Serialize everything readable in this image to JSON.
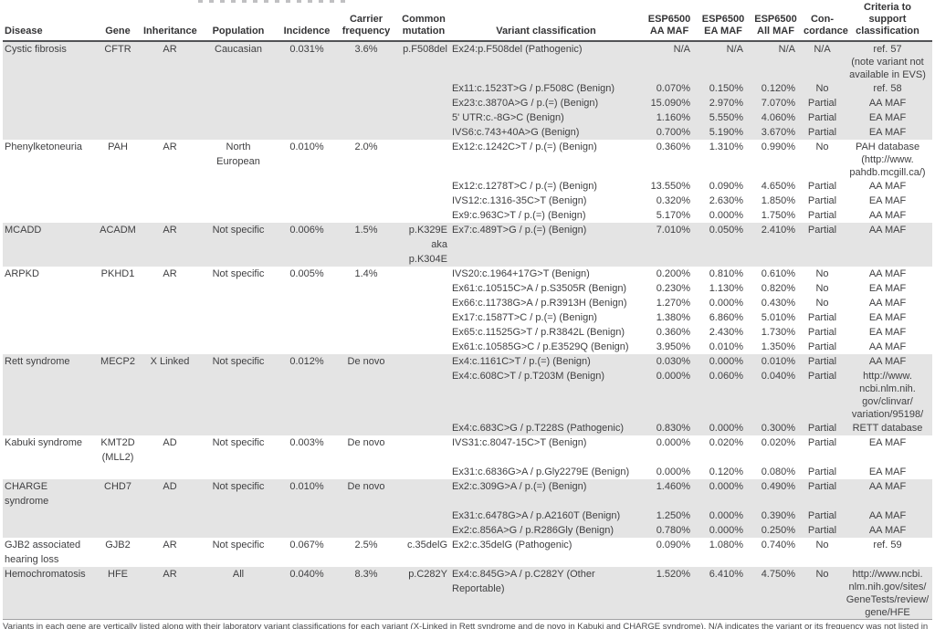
{
  "table": {
    "columns": [
      {
        "key": "disease",
        "label": "Disease"
      },
      {
        "key": "gene",
        "label": "Gene"
      },
      {
        "key": "inheritance",
        "label": "Inheritance"
      },
      {
        "key": "population",
        "label": "Population"
      },
      {
        "key": "incidence",
        "label": "Incidence"
      },
      {
        "key": "carrier_frequency",
        "label": "Carrier\nfrequency"
      },
      {
        "key": "common_mutation",
        "label": "Common\nmutation"
      },
      {
        "key": "classification",
        "label": "Variant classification"
      },
      {
        "key": "aa_maf",
        "label": "ESP6500\nAA MAF"
      },
      {
        "key": "ea_maf",
        "label": "ESP6500\nEA MAF"
      },
      {
        "key": "all_maf",
        "label": "ESP6500\nAll MAF"
      },
      {
        "key": "concordance",
        "label": "Con-\ncordance"
      },
      {
        "key": "criteria",
        "label": "Criteria to\nsupport\nclassification"
      }
    ],
    "groups": [
      {
        "shaded": true,
        "disease": "Cystic fibrosis",
        "gene": "CFTR",
        "inheritance": "AR",
        "population": "Caucasian",
        "incidence": "0.031%",
        "carrier_frequency": "3.6%",
        "common_mutation": "p.F508del",
        "variants": [
          {
            "classification": "Ex24:p.F508del (Pathogenic)",
            "aa_maf": "N/A",
            "ea_maf": "N/A",
            "all_maf": "N/A",
            "concordance": "N/A",
            "criteria": "ref. 57\n(note variant not\navailable in EVS)"
          },
          {
            "classification": "Ex11:c.1523T>G / p.F508C (Benign)",
            "aa_maf": "0.070%",
            "ea_maf": "0.150%",
            "all_maf": "0.120%",
            "concordance": "No",
            "criteria": "ref. 58"
          },
          {
            "classification": "Ex23:c.3870A>G / p.(=) (Benign)",
            "aa_maf": "15.090%",
            "ea_maf": "2.970%",
            "all_maf": "7.070%",
            "concordance": "Partial",
            "criteria": "AA MAF"
          },
          {
            "classification": "5' UTR:c.-8G>C (Benign)",
            "aa_maf": "1.160%",
            "ea_maf": "5.550%",
            "all_maf": "4.060%",
            "concordance": "Partial",
            "criteria": "EA MAF"
          },
          {
            "classification": "IVS6:c.743+40A>G (Benign)",
            "aa_maf": "0.700%",
            "ea_maf": "5.190%",
            "all_maf": "3.670%",
            "concordance": "Partial",
            "criteria": "EA MAF"
          }
        ]
      },
      {
        "shaded": false,
        "disease": "Phenylketoneuria",
        "gene": "PAH",
        "inheritance": "AR",
        "population": "North\nEuropean",
        "incidence": "0.010%",
        "carrier_frequency": "2.0%",
        "common_mutation": "",
        "variants": [
          {
            "classification": "Ex12:c.1242C>T / p.(=) (Benign)",
            "aa_maf": "0.360%",
            "ea_maf": "1.310%",
            "all_maf": "0.990%",
            "concordance": "No",
            "criteria": "PAH database\n(http://www.\npahdb.mcgill.ca/)"
          },
          {
            "classification": "Ex12:c.1278T>C / p.(=) (Benign)",
            "aa_maf": "13.550%",
            "ea_maf": "0.090%",
            "all_maf": "4.650%",
            "concordance": "Partial",
            "criteria": "AA MAF"
          },
          {
            "classification": "IVS12:c.1316-35C>T (Benign)",
            "aa_maf": "0.320%",
            "ea_maf": "2.630%",
            "all_maf": "1.850%",
            "concordance": "Partial",
            "criteria": "EA MAF"
          },
          {
            "classification": "Ex9:c.963C>T / p.(=) (Benign)",
            "aa_maf": "5.170%",
            "ea_maf": "0.000%",
            "all_maf": "1.750%",
            "concordance": "Partial",
            "criteria": "AA MAF"
          }
        ]
      },
      {
        "shaded": true,
        "disease": "MCADD",
        "gene": "ACADM",
        "inheritance": "AR",
        "population": "Not specific",
        "incidence": "0.006%",
        "carrier_frequency": "1.5%",
        "common_mutation": "p.K329E\naka p.K304E",
        "variants": [
          {
            "classification": "Ex7:c.489T>G / p.(=) (Benign)",
            "aa_maf": "7.010%",
            "ea_maf": "0.050%",
            "all_maf": "2.410%",
            "concordance": "Partial",
            "criteria": "AA MAF"
          }
        ]
      },
      {
        "shaded": false,
        "disease": "ARPKD",
        "gene": "PKHD1",
        "inheritance": "AR",
        "population": "Not specific",
        "incidence": "0.005%",
        "carrier_frequency": "1.4%",
        "common_mutation": "",
        "variants": [
          {
            "classification": "IVS20:c.1964+17G>T (Benign)",
            "aa_maf": "0.200%",
            "ea_maf": "0.810%",
            "all_maf": "0.610%",
            "concordance": "No",
            "criteria": "AA MAF"
          },
          {
            "classification": "Ex61:c.10515C>A / p.S3505R (Benign)",
            "aa_maf": "0.230%",
            "ea_maf": "1.130%",
            "all_maf": "0.820%",
            "concordance": "No",
            "criteria": "EA MAF"
          },
          {
            "classification": "Ex66:c.11738G>A / p.R3913H (Benign)",
            "aa_maf": "1.270%",
            "ea_maf": "0.000%",
            "all_maf": "0.430%",
            "concordance": "No",
            "criteria": "AA MAF"
          },
          {
            "classification": "Ex17:c.1587T>C / p.(=) (Benign)",
            "aa_maf": "1.380%",
            "ea_maf": "6.860%",
            "all_maf": "5.010%",
            "concordance": "Partial",
            "criteria": "EA MAF"
          },
          {
            "classification": "Ex65:c.11525G>T / p.R3842L (Benign)",
            "aa_maf": "0.360%",
            "ea_maf": "2.430%",
            "all_maf": "1.730%",
            "concordance": "Partial",
            "criteria": "EA MAF"
          },
          {
            "classification": "Ex61:c.10585G>C / p.E3529Q (Benign)",
            "aa_maf": "3.950%",
            "ea_maf": "0.010%",
            "all_maf": "1.350%",
            "concordance": "Partial",
            "criteria": "AA MAF"
          }
        ]
      },
      {
        "shaded": true,
        "disease": "Rett syndrome",
        "gene": "MECP2",
        "inheritance": "X Linked",
        "population": "Not specific",
        "incidence": "0.012%",
        "carrier_frequency": "De novo",
        "common_mutation": "",
        "variants": [
          {
            "classification": "Ex4:c.1161C>T / p.(=) (Benign)",
            "aa_maf": "0.030%",
            "ea_maf": "0.000%",
            "all_maf": "0.010%",
            "concordance": "Partial",
            "criteria": "AA MAF"
          },
          {
            "classification": "Ex4:c.608C>T / p.T203M (Benign)",
            "aa_maf": "0.000%",
            "ea_maf": "0.060%",
            "all_maf": "0.040%",
            "concordance": "Partial",
            "criteria": "http://www.\nncbi.nlm.nih.\ngov/clinvar/\nvariation/95198/"
          },
          {
            "classification": "Ex4:c.683C>G / p.T228S (Pathogenic)",
            "aa_maf": "0.830%",
            "ea_maf": "0.000%",
            "all_maf": "0.300%",
            "concordance": "Partial",
            "criteria": "RETT database"
          }
        ]
      },
      {
        "shaded": false,
        "disease": "Kabuki syndrome",
        "gene": "KMT2D\n(MLL2)",
        "inheritance": "AD",
        "population": "Not specific",
        "incidence": "0.003%",
        "carrier_frequency": "De novo",
        "common_mutation": "",
        "variants": [
          {
            "classification": "IVS31:c.8047-15C>T (Benign)",
            "aa_maf": "0.000%",
            "ea_maf": "0.020%",
            "all_maf": "0.020%",
            "concordance": "Partial",
            "criteria": "EA MAF"
          },
          {
            "classification": "Ex31:c.6836G>A / p.Gly2279E (Benign)",
            "aa_maf": "0.000%",
            "ea_maf": "0.120%",
            "all_maf": "0.080%",
            "concordance": "Partial",
            "criteria": "EA MAF"
          }
        ]
      },
      {
        "shaded": true,
        "disease": "CHARGE syndrome",
        "gene": "CHD7",
        "inheritance": "AD",
        "population": "Not specific",
        "incidence": "0.010%",
        "carrier_frequency": "De novo",
        "common_mutation": "",
        "variants": [
          {
            "classification": "Ex2:c.309G>A / p.(=) (Benign)",
            "aa_maf": "1.460%",
            "ea_maf": "0.000%",
            "all_maf": "0.490%",
            "concordance": "Partial",
            "criteria": "AA MAF"
          },
          {
            "classification": "Ex31:c.6478G>A / p.A2160T (Benign)",
            "aa_maf": "1.250%",
            "ea_maf": "0.000%",
            "all_maf": "0.390%",
            "concordance": "Partial",
            "criteria": "AA MAF"
          },
          {
            "classification": "Ex2:c.856A>G / p.R286Gly (Benign)",
            "aa_maf": "0.780%",
            "ea_maf": "0.000%",
            "all_maf": "0.250%",
            "concordance": "Partial",
            "criteria": "AA MAF"
          }
        ]
      },
      {
        "shaded": false,
        "disease": "GJB2 associated\nhearing loss",
        "gene": "GJB2",
        "inheritance": "AR",
        "population": "Not specific",
        "incidence": "0.067%",
        "carrier_frequency": "2.5%",
        "common_mutation": "c.35delG",
        "variants": [
          {
            "classification": "Ex2:c.35delG (Pathogenic)",
            "aa_maf": "0.090%",
            "ea_maf": "1.080%",
            "all_maf": "0.740%",
            "concordance": "No",
            "criteria": "ref. 59"
          }
        ]
      },
      {
        "shaded": true,
        "disease": "Hemochromatosis",
        "gene": "HFE",
        "inheritance": "AR",
        "population": "All",
        "incidence": "0.040%",
        "carrier_frequency": "8.3%",
        "common_mutation": "p.C282Y",
        "variants": [
          {
            "classification": "Ex4:c.845G>A / p.C282Y (Other\nReportable)",
            "aa_maf": "1.520%",
            "ea_maf": "6.410%",
            "all_maf": "4.750%",
            "concordance": "No",
            "criteria": "http://www.ncbi.\nnlm.nih.gov/sites/\nGeneTests/review/\ngene/HFE"
          }
        ]
      }
    ],
    "footnote_clipped": "Variants in each gene are vertically listed along with their laboratory variant classifications for each variant (X-Linked in Rett syndrome and de novo in Kabuki and CHARGE syndrome). N/A indicates the variant or its frequency was not listed in the database."
  }
}
